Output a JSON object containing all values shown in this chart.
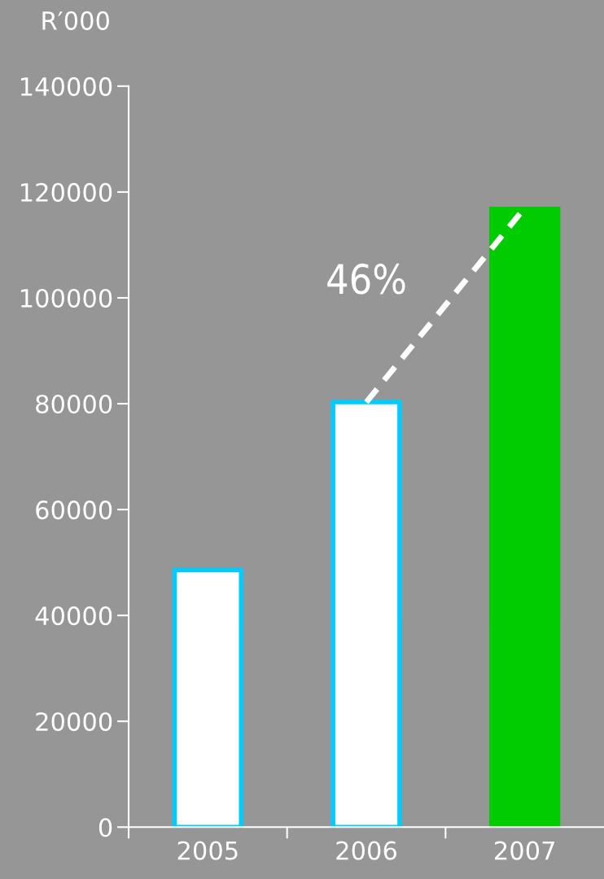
{
  "chart_data": {
    "type": "bar",
    "ylabel": "R′000",
    "categories": [
      "2005",
      "2006",
      "2007"
    ],
    "series": [
      {
        "colors": [
          "#ffffff",
          "#ffffff",
          "#00cc00"
        ],
        "values": [
          48600,
          80300,
          116800
        ]
      },
      {
        "type": "line",
        "color": "#ffffff",
        "line_style": "dashed",
        "values": [
          null,
          80300,
          117000
        ]
      }
    ],
    "annotations": [
      "46%"
    ],
    "ylim": [
      0,
      140000
    ],
    "yticks": [
      0,
      20000,
      40000,
      60000,
      80000,
      100000,
      120000,
      140000
    ],
    "grid": false,
    "legend": false
  }
}
